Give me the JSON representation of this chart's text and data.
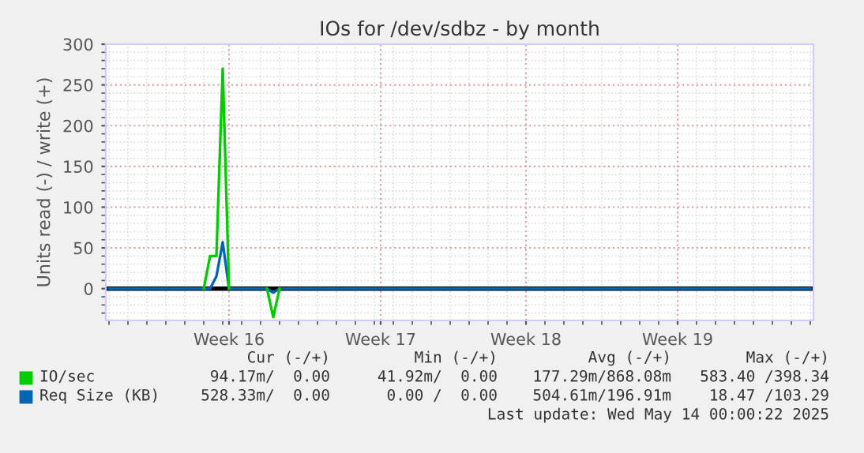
{
  "chart_data": {
    "type": "line",
    "title": "IOs for /dev/sdbz - by month",
    "ylabel": "Units read (-) / write (+)",
    "ylim": [
      -39,
      300
    ],
    "yticks": [
      0,
      50,
      100,
      150,
      200,
      250,
      300
    ],
    "categories": [
      null,
      null,
      null,
      null,
      null,
      null,
      null,
      null,
      null,
      null,
      null,
      null,
      null,
      null,
      null,
      null,
      null,
      null,
      null,
      "Week 16",
      null,
      null,
      null,
      null,
      null,
      null,
      null,
      null,
      null,
      null,
      null,
      null,
      null,
      null,
      null,
      null,
      null,
      null,
      null,
      null,
      null,
      null,
      null,
      "Week 17",
      null,
      null,
      null,
      null,
      null,
      null,
      null,
      null,
      null,
      null,
      null,
      null,
      null,
      null,
      null,
      null,
      null,
      null,
      null,
      null,
      null,
      null,
      "Week 18",
      null,
      null,
      null,
      null,
      null,
      null,
      null,
      null,
      null,
      null,
      null,
      null,
      null,
      null,
      null,
      null,
      null,
      null,
      null,
      null,
      null,
      null,
      null,
      "Week 19",
      null,
      null,
      null,
      null,
      null,
      null,
      null,
      null,
      null,
      null,
      null,
      null,
      null,
      null,
      null,
      null,
      null,
      null,
      null,
      null,
      null
    ],
    "grid": true,
    "legend": "bottom",
    "line_style": "solid",
    "marker": "none",
    "ref_lines": [
      {
        "axis": "y",
        "value": 0,
        "color": "#000000"
      }
    ],
    "series": [
      {
        "name": "IO/sec",
        "color": "#00cc00",
        "values": [
          null,
          null,
          null,
          null,
          null,
          null,
          null,
          null,
          null,
          null,
          null,
          null,
          null,
          null,
          null,
          0,
          40,
          40,
          270,
          0,
          null,
          null,
          null,
          null,
          null,
          0,
          -35,
          0,
          null,
          null,
          null,
          null,
          null,
          null,
          null,
          null,
          null,
          null,
          null,
          null,
          null,
          null,
          null,
          null,
          null,
          null,
          null,
          null,
          null,
          null,
          null,
          null,
          null,
          null,
          null,
          null,
          null,
          null,
          null,
          null,
          null,
          null,
          null,
          null,
          null,
          null,
          null,
          null,
          null,
          null,
          null,
          null,
          null,
          null,
          null,
          null,
          null,
          null,
          null,
          null,
          null,
          null,
          null,
          null,
          null,
          null,
          null,
          null,
          null,
          null,
          null,
          null,
          null,
          null,
          null,
          null,
          null,
          null,
          null,
          null,
          null,
          null,
          null,
          null,
          null,
          null,
          null,
          null,
          null,
          null,
          null,
          null
        ]
      },
      {
        "name": "Req Size (KB)",
        "color": "#0066b3",
        "values": [
          0,
          0,
          0,
          0,
          0,
          0,
          0,
          0,
          0,
          0,
          0,
          0,
          0,
          0,
          0,
          0,
          0,
          15,
          57,
          0,
          0,
          0,
          0,
          0,
          0,
          0,
          -5,
          0,
          0,
          0,
          0,
          0,
          0,
          0,
          0,
          0,
          0,
          0,
          0,
          0,
          0,
          0,
          0,
          0,
          0,
          0,
          0,
          0,
          0,
          0,
          0,
          0,
          0,
          0,
          0,
          0,
          0,
          0,
          0,
          0,
          0,
          0,
          0,
          0,
          0,
          0,
          0,
          0,
          0,
          0,
          0,
          0,
          0,
          0,
          0,
          0,
          0,
          0,
          0,
          0,
          0,
          0,
          0,
          0,
          0,
          0,
          0,
          0,
          0,
          0,
          0,
          0,
          0,
          0,
          0,
          0,
          0,
          0,
          0,
          0,
          0,
          0,
          0,
          0,
          0,
          0,
          0,
          0,
          0,
          0,
          0,
          0
        ]
      }
    ],
    "annotations": [
      "Cur (-/+)",
      "Min (-/+)",
      "Avg (-/+)",
      "Max (-/+)",
      "94.17m/  0.00",
      "41.92m/  0.00",
      "177.29m/868.08m",
      "583.40 /398.34",
      "528.33m/  0.00",
      "0.00 /  0.00",
      "504.61m/196.91m",
      "18.47 /103.29",
      "Last update: Wed May 14 00:00:22 2025"
    ]
  }
}
